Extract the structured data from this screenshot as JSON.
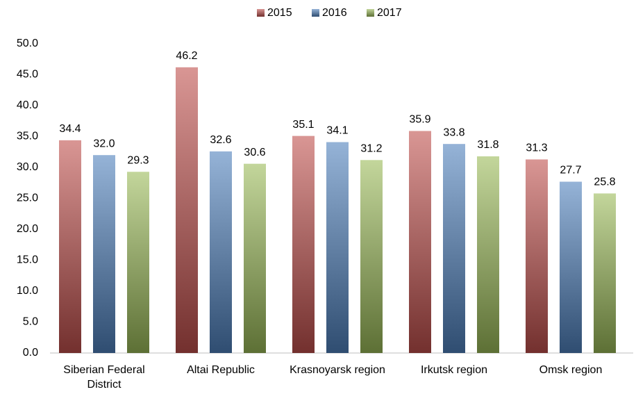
{
  "chart_data": {
    "type": "bar",
    "categories": [
      "Siberian Federal District",
      "Altai Republic",
      "Krasnoyarsk region",
      "Irkutsk region",
      "Omsk region"
    ],
    "series": [
      {
        "name": "2015",
        "color": "#c0504d",
        "values": [
          34.4,
          46.2,
          35.1,
          35.9,
          31.3
        ],
        "value_labels": [
          "34.4",
          "46.2",
          "35.1",
          "35.9",
          "31.3"
        ]
      },
      {
        "name": "2016",
        "color": "#4f81bd",
        "values": [
          32.0,
          32.6,
          34.1,
          33.8,
          27.7
        ],
        "value_labels": [
          "32.0",
          "32.6",
          "34.1",
          "33.8",
          "27.7"
        ]
      },
      {
        "name": "2017",
        "color": "#9bbb59",
        "values": [
          29.3,
          30.6,
          31.2,
          31.8,
          25.8
        ],
        "value_labels": [
          "29.3",
          "30.6",
          "31.2",
          "31.8",
          "25.8"
        ]
      }
    ],
    "ylim": [
      0,
      50
    ],
    "yticks": [
      {
        "value": 0,
        "label": "0.0"
      },
      {
        "value": 5,
        "label": "5.0"
      },
      {
        "value": 10,
        "label": "10.0"
      },
      {
        "value": 15,
        "label": "15.0"
      },
      {
        "value": 20,
        "label": "20.0"
      },
      {
        "value": 25,
        "label": "25.0"
      },
      {
        "value": 30,
        "label": "30.0"
      },
      {
        "value": 35,
        "label": "35.0"
      },
      {
        "value": 40,
        "label": "40.0"
      },
      {
        "value": 45,
        "label": "45.0"
      },
      {
        "value": 50,
        "label": "50.0"
      }
    ],
    "legend": "top",
    "grid": false
  }
}
